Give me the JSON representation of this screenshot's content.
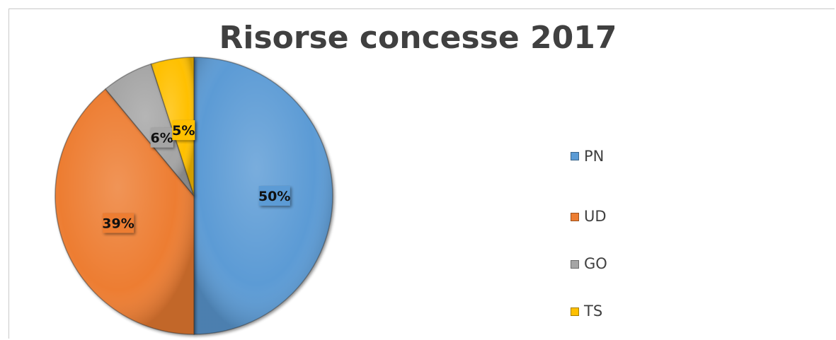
{
  "chart_data": {
    "type": "pie",
    "title": "Risorse concesse 2017",
    "categories": [
      "PN",
      "UD",
      "GO",
      "TS"
    ],
    "values": [
      50,
      39,
      6,
      5
    ],
    "data_labels": [
      "50%",
      "39%",
      "6%",
      "5%"
    ],
    "colors": [
      "#5B9BD5",
      "#ED7D31",
      "#A5A5A5",
      "#FFC000"
    ],
    "legend_position": "right"
  }
}
